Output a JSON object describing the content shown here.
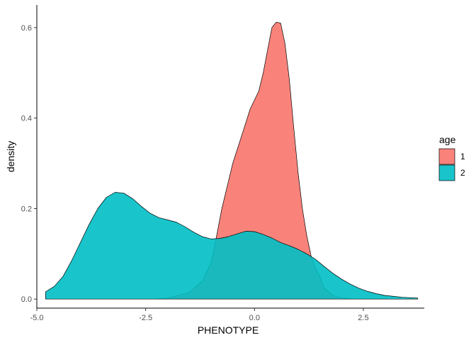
{
  "chart_data": {
    "type": "area",
    "title": "",
    "xlabel": "PHENOTYPE",
    "ylabel": "density",
    "xlim": [
      -5.0,
      3.9
    ],
    "ylim": [
      -0.02,
      0.65
    ],
    "xticks": [
      -5.0,
      -2.5,
      0.0,
      2.5
    ],
    "xtick_labels": [
      "-5.0",
      "-2.5",
      "0.0",
      "2.5"
    ],
    "yticks": [
      0.0,
      0.2,
      0.4,
      0.6
    ],
    "ytick_labels": [
      "0.0",
      "0.2",
      "0.4",
      "0.6"
    ],
    "grid": false,
    "legend": {
      "title": "age",
      "position": "right"
    },
    "series": [
      {
        "name": "1",
        "color": "#F8766D",
        "opacity": 0.9,
        "x": [
          -2.3,
          -2.0,
          -1.5,
          -1.2,
          -1.0,
          -0.9,
          -0.75,
          -0.5,
          -0.3,
          -0.1,
          0.0,
          0.1,
          0.2,
          0.3,
          0.4,
          0.5,
          0.6,
          0.7,
          0.8,
          0.9,
          1.0,
          1.1,
          1.2,
          1.3,
          1.4,
          1.5,
          1.6,
          1.8,
          2.0,
          2.3,
          2.6,
          3.0
        ],
        "y": [
          0.0,
          0.002,
          0.015,
          0.04,
          0.08,
          0.125,
          0.2,
          0.3,
          0.36,
          0.42,
          0.44,
          0.46,
          0.5,
          0.55,
          0.6,
          0.612,
          0.61,
          0.565,
          0.485,
          0.38,
          0.28,
          0.2,
          0.14,
          0.095,
          0.07,
          0.05,
          0.025,
          0.008,
          0.002,
          0.0,
          0.0,
          0.0
        ]
      },
      {
        "name": "2",
        "color": "#00BFC4",
        "opacity": 0.9,
        "x": [
          -4.8,
          -4.6,
          -4.4,
          -4.2,
          -4.0,
          -3.8,
          -3.6,
          -3.4,
          -3.2,
          -3.0,
          -2.8,
          -2.6,
          -2.4,
          -2.2,
          -2.0,
          -1.8,
          -1.6,
          -1.4,
          -1.2,
          -1.0,
          -0.8,
          -0.6,
          -0.4,
          -0.2,
          0.0,
          0.2,
          0.4,
          0.6,
          0.8,
          1.0,
          1.2,
          1.4,
          1.6,
          1.8,
          2.0,
          2.2,
          2.4,
          2.6,
          2.8,
          3.0,
          3.2,
          3.4,
          3.6,
          3.75
        ],
        "y": [
          0.016,
          0.028,
          0.05,
          0.085,
          0.125,
          0.165,
          0.2,
          0.225,
          0.236,
          0.234,
          0.222,
          0.205,
          0.19,
          0.18,
          0.175,
          0.17,
          0.16,
          0.148,
          0.138,
          0.133,
          0.134,
          0.138,
          0.144,
          0.15,
          0.149,
          0.143,
          0.135,
          0.125,
          0.118,
          0.11,
          0.1,
          0.088,
          0.072,
          0.057,
          0.044,
          0.033,
          0.024,
          0.017,
          0.012,
          0.008,
          0.006,
          0.004,
          0.003,
          0.002
        ]
      }
    ]
  }
}
